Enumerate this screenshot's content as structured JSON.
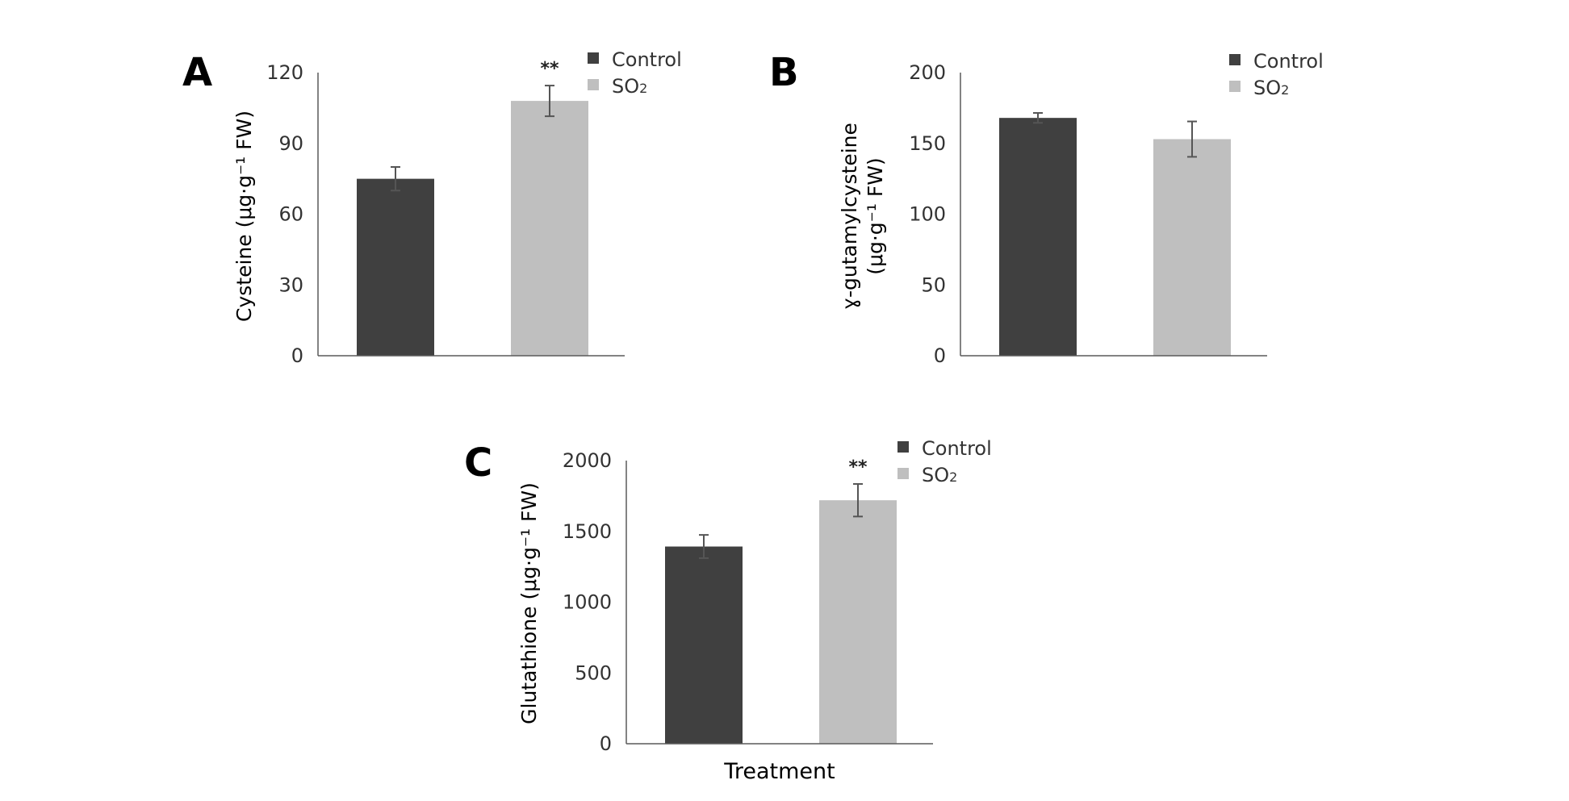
{
  "colors": {
    "control": "#404040",
    "so2": "#bfbfbf",
    "axis": "#5a5a5a",
    "error": "#555555"
  },
  "legend": {
    "control": "Control",
    "so2_main": "SO",
    "so2_sub": "2"
  },
  "chart_data": [
    {
      "type": "bar",
      "panel": "A",
      "categories": [
        "Control",
        "SO2"
      ],
      "values": [
        75,
        108
      ],
      "errors": [
        5,
        6.5
      ],
      "significance": [
        "",
        "**"
      ],
      "ylabel": "Cysteine (μg·g⁻¹ FW)",
      "ylim": [
        0,
        120
      ],
      "yticks": [
        "0",
        "30",
        "60",
        "90",
        "120"
      ],
      "xlabel": ""
    },
    {
      "type": "bar",
      "panel": "B",
      "categories": [
        "Control",
        "SO2"
      ],
      "values": [
        168,
        153
      ],
      "errors": [
        3.5,
        12.5
      ],
      "significance": [
        "",
        ""
      ],
      "ylabel_lines": [
        "ɣ-gutamylcysteine",
        "(μg·g⁻¹ FW)"
      ],
      "ylim": [
        0,
        200
      ],
      "yticks": [
        "0",
        "50",
        "100",
        "150",
        "200"
      ],
      "xlabel": ""
    },
    {
      "type": "bar",
      "panel": "C",
      "categories": [
        "Control",
        "SO2"
      ],
      "values": [
        1393,
        1720
      ],
      "errors": [
        82,
        115
      ],
      "significance": [
        "",
        "**"
      ],
      "ylabel": "Glutathione (μg·g⁻¹ FW)",
      "ylim": [
        0,
        2000
      ],
      "yticks": [
        "0",
        "500",
        "1000",
        "1500",
        "2000"
      ],
      "xlabel": "Treatment"
    }
  ]
}
